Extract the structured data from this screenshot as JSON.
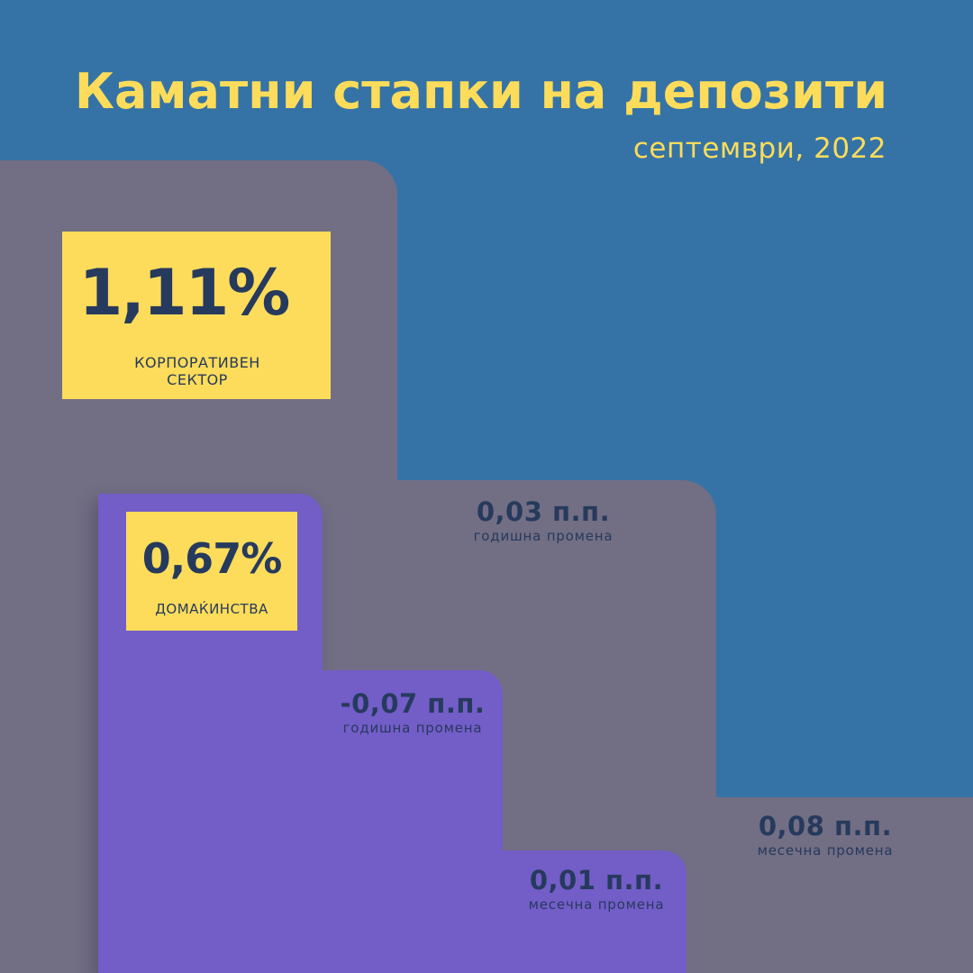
{
  "header": {
    "title": "Каматни стапки на депозити",
    "subtitle": "септември, 2022"
  },
  "corporate": {
    "rate": "1,11%",
    "label_line1": "КОРПОРАТИВЕН",
    "label_line2": "СЕКТОР",
    "annual_change": "0,03 п.п.",
    "annual_label": "годишна промена",
    "monthly_change": "0,08 п.п.",
    "monthly_label": "месечна промена"
  },
  "households": {
    "rate": "0,67%",
    "label": "ДОМАЌИНСТВА",
    "annual_change": "-0,07 п.п.",
    "annual_label": "годишна промена",
    "monthly_change": "0,01 п.п.",
    "monthly_label": "месечна промена"
  },
  "colors": {
    "background": "#3573a6",
    "accent_yellow": "#fcdc5a",
    "corporate_gray": "#726e84",
    "households_purple": "#735dc7",
    "text_dark": "#263a5d"
  }
}
